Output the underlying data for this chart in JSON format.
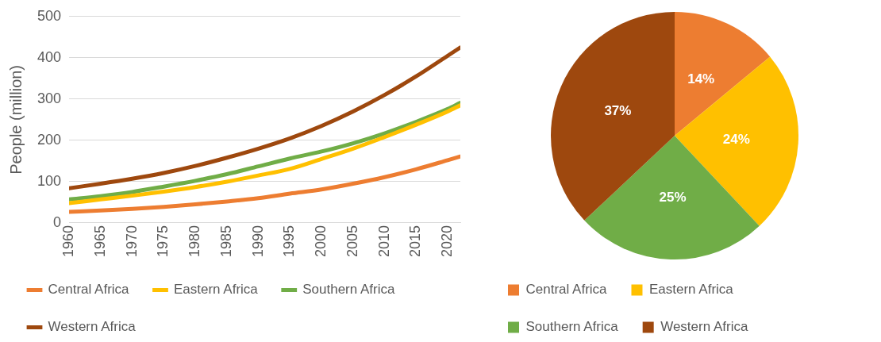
{
  "chart_data": [
    {
      "type": "line",
      "ylabel": "People (million)",
      "x": [
        1960,
        1965,
        1970,
        1975,
        1980,
        1985,
        1990,
        1995,
        2000,
        2005,
        2010,
        2015,
        2020,
        2022
      ],
      "xlim": [
        1960,
        2022
      ],
      "xticks": [
        1960,
        1965,
        1970,
        1975,
        1980,
        1985,
        1990,
        1995,
        2000,
        2005,
        2010,
        2015,
        2020
      ],
      "ylim": [
        0,
        500
      ],
      "yticks": [
        0,
        100,
        200,
        300,
        400,
        500
      ],
      "grid": "y",
      "legend": "bottom",
      "marker": "none",
      "line_style": "solid",
      "series": [
        {
          "name": "Central Africa",
          "color": "#ed7d31",
          "values": [
            27,
            30,
            34,
            39,
            45,
            52,
            60,
            71,
            81,
            95,
            111,
            130,
            152,
            161
          ]
        },
        {
          "name": "Eastern Africa",
          "color": "#ffc000",
          "values": [
            48,
            57,
            66,
            76,
            87,
            100,
            115,
            131,
            155,
            180,
            208,
            238,
            270,
            285
          ]
        },
        {
          "name": "Southern Africa",
          "color": "#70ad47",
          "values": [
            57,
            65,
            75,
            88,
            102,
            118,
            137,
            156,
            173,
            193,
            217,
            245,
            276,
            291
          ]
        },
        {
          "name": "Western Africa",
          "color": "#9e480e",
          "values": [
            84,
            95,
            107,
            121,
            138,
            158,
            180,
            205,
            235,
            270,
            310,
            355,
            405,
            425
          ]
        }
      ]
    },
    {
      "type": "pie",
      "categories": [
        "Central Africa",
        "Eastern Africa",
        "Southern Africa",
        "Western Africa"
      ],
      "values": [
        14,
        24,
        25,
        37
      ],
      "colors": [
        "#ed7d31",
        "#ffc000",
        "#70ad47",
        "#9e480e"
      ],
      "value_labels": [
        "14%",
        "24%",
        "25%",
        "37%"
      ],
      "legend": "bottom"
    }
  ]
}
